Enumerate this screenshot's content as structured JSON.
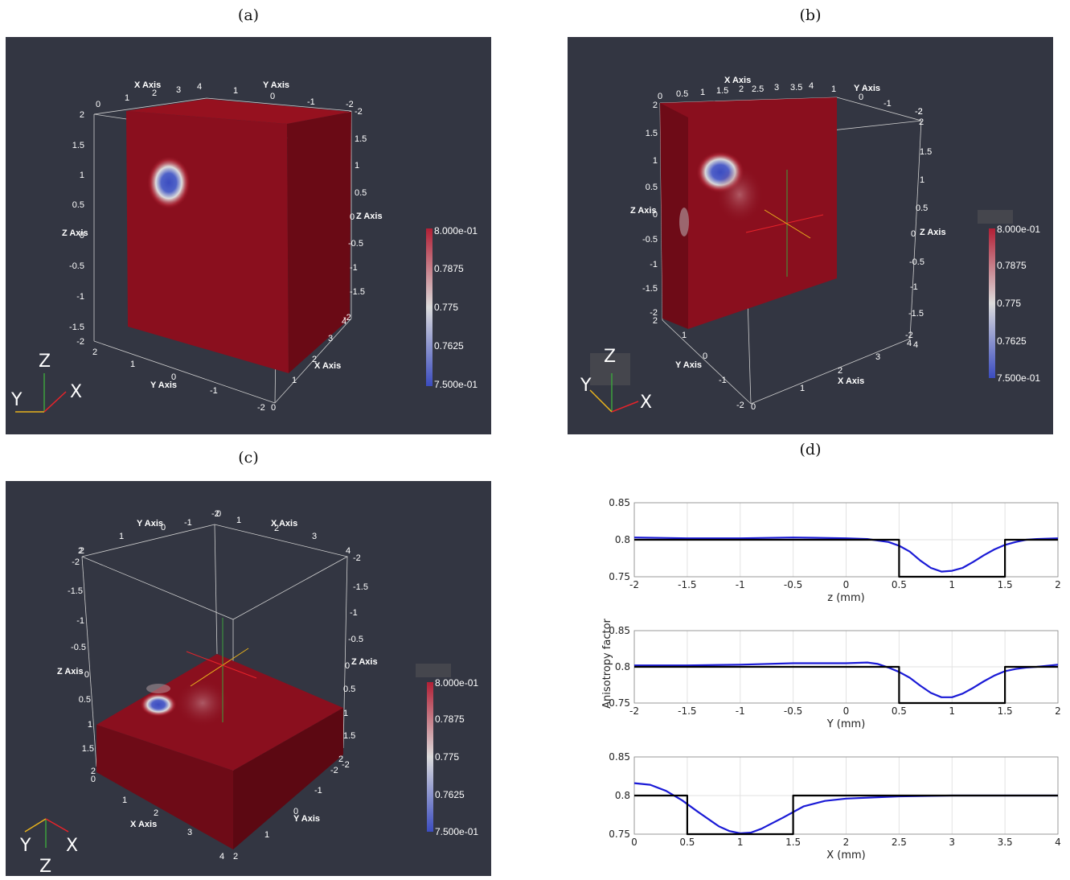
{
  "captions": {
    "a": "(a)",
    "b": "(b)",
    "c": "(c)",
    "d": "(d)"
  },
  "colorbar": {
    "max": "8.000e-01",
    "t1": "0.7875",
    "mid": "0.775",
    "t3": "0.7625",
    "min": "7.500e-01",
    "colors": {
      "high": "#b11f35",
      "mid": "#dcdcdc",
      "low": "#3b4cc0"
    }
  },
  "triad": {
    "x": "X",
    "y": "Y",
    "z": "Z"
  },
  "axis_labels": {
    "x": "X Axis",
    "y": "Y Axis",
    "z": "Z Axis"
  },
  "colors": {
    "background": "#333642",
    "volume": "#8a0f1e",
    "x_axis": "#e8232a",
    "y_axis": "#e8b21c",
    "z_axis": "#3ca03c",
    "estimate": "#1a1ad6",
    "ground_truth": "#000000"
  },
  "chart_data": [
    {
      "type": "line",
      "ylabel": "Anisotropy factor",
      "xlabel": "z (mm)",
      "x_ticks": [
        "-2",
        "-1.5",
        "-1",
        "-0.5",
        "0",
        "0.5",
        "1",
        "1.5",
        "2"
      ],
      "y_ticks": [
        "0.75",
        "0.8",
        "0.85"
      ],
      "xlim": [
        -2,
        2
      ],
      "ylim": [
        0.75,
        0.85
      ],
      "grid": true,
      "series": [
        {
          "color": "#1a1ad6",
          "x": [
            -2,
            -1.5,
            -1,
            -0.5,
            0,
            0.2,
            0.4,
            0.5,
            0.6,
            0.7,
            0.8,
            0.9,
            1.0,
            1.1,
            1.2,
            1.3,
            1.4,
            1.5,
            1.6,
            1.7,
            1.8,
            2.0
          ],
          "y": [
            0.803,
            0.802,
            0.802,
            0.803,
            0.802,
            0.801,
            0.797,
            0.792,
            0.784,
            0.772,
            0.762,
            0.757,
            0.758,
            0.762,
            0.77,
            0.779,
            0.787,
            0.793,
            0.797,
            0.8,
            0.801,
            0.802
          ]
        },
        {
          "color": "#000000",
          "x": [
            -2,
            0.5,
            0.5,
            1.5,
            1.5,
            2
          ],
          "y": [
            0.8,
            0.8,
            0.75,
            0.75,
            0.8,
            0.8
          ]
        }
      ]
    },
    {
      "type": "line",
      "xlabel": "Y (mm)",
      "x_ticks": [
        "-2",
        "-1.5",
        "-1",
        "-0.5",
        "0",
        "0.5",
        "1",
        "1.5",
        "2"
      ],
      "y_ticks": [
        "0.75",
        "0.8",
        "0.85"
      ],
      "xlim": [
        -2,
        2
      ],
      "ylim": [
        0.75,
        0.85
      ],
      "grid": true,
      "series": [
        {
          "color": "#1a1ad6",
          "x": [
            -2,
            -1.5,
            -1,
            -0.5,
            0,
            0.2,
            0.3,
            0.4,
            0.5,
            0.6,
            0.7,
            0.8,
            0.9,
            1.0,
            1.1,
            1.2,
            1.3,
            1.4,
            1.5,
            1.6,
            1.7,
            1.8,
            2.0
          ],
          "y": [
            0.802,
            0.802,
            0.803,
            0.805,
            0.805,
            0.806,
            0.804,
            0.799,
            0.793,
            0.785,
            0.774,
            0.764,
            0.758,
            0.758,
            0.763,
            0.771,
            0.78,
            0.788,
            0.794,
            0.797,
            0.799,
            0.8,
            0.803
          ]
        },
        {
          "color": "#000000",
          "x": [
            -2,
            0.5,
            0.5,
            1.5,
            1.5,
            2
          ],
          "y": [
            0.8,
            0.8,
            0.75,
            0.75,
            0.8,
            0.8
          ]
        }
      ]
    },
    {
      "type": "line",
      "xlabel": "X (mm)",
      "x_ticks": [
        "0",
        "0.5",
        "1",
        "1.5",
        "2",
        "2.5",
        "3",
        "3.5",
        "4"
      ],
      "y_ticks": [
        "0.75",
        "0.8",
        "0.85"
      ],
      "xlim": [
        0,
        4
      ],
      "ylim": [
        0.75,
        0.85
      ],
      "grid": true,
      "series": [
        {
          "color": "#1a1ad6",
          "x": [
            0,
            0.15,
            0.3,
            0.45,
            0.6,
            0.8,
            0.9,
            1.0,
            1.1,
            1.2,
            1.4,
            1.6,
            1.8,
            2.0,
            2.5,
            3.0,
            3.5,
            4.0
          ],
          "y": [
            0.816,
            0.814,
            0.806,
            0.794,
            0.779,
            0.76,
            0.754,
            0.751,
            0.752,
            0.757,
            0.771,
            0.786,
            0.793,
            0.796,
            0.799,
            0.8,
            0.8,
            0.8
          ]
        },
        {
          "color": "#000000",
          "x": [
            0,
            0.5,
            0.5,
            1.5,
            1.5,
            4
          ],
          "y": [
            0.8,
            0.8,
            0.75,
            0.75,
            0.8,
            0.8
          ]
        }
      ]
    }
  ]
}
